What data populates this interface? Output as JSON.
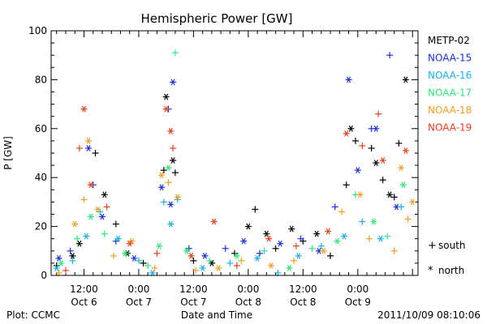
{
  "chart_data": {
    "type": "scatter",
    "title": "Hemispheric Power [GW]",
    "ylabel": "P [GW]",
    "xlabel": "Date and Time",
    "ylim": [
      0,
      100
    ],
    "xlim": [
      "2011-10-06 04:48",
      "2011-10-09 13:12"
    ],
    "yticks": [
      "0",
      "20",
      "40",
      "60",
      "80",
      "100"
    ],
    "xticks": [
      {
        "time": "2011-10-06 12:00",
        "line1": "12:00",
        "line2": "Oct 6"
      },
      {
        "time": "2011-10-07 00:00",
        "line1": "0:00",
        "line2": "Oct 7"
      },
      {
        "time": "2011-10-07 12:00",
        "line1": "12:00",
        "line2": "Oct 7"
      },
      {
        "time": "2011-10-08 00:00",
        "line1": "0:00",
        "line2": "Oct 8"
      },
      {
        "time": "2011-10-08 12:00",
        "line1": "12:00",
        "line2": "Oct 8"
      },
      {
        "time": "2011-10-09 00:00",
        "line1": "0:00",
        "line2": "Oct 9"
      }
    ],
    "legend": {
      "placement": "right",
      "entries": [
        {
          "name": "METP-02",
          "color": "#000000"
        },
        {
          "name": "NOAA-15",
          "color": "#1a2fd8"
        },
        {
          "name": "NOAA-16",
          "color": "#1ab0e8"
        },
        {
          "name": "NOAA-17",
          "color": "#2ee87a"
        },
        {
          "name": "NOAA-18",
          "color": "#f0a020"
        },
        {
          "name": "NOAA-19",
          "color": "#e8401c"
        }
      ],
      "markers": [
        {
          "symbol": "+",
          "label": "south"
        },
        {
          "symbol": "*",
          "label": "north"
        }
      ]
    },
    "series": [
      {
        "name": "METP-02",
        "color": "#000000",
        "points": [
          [
            "2011-10-06 06:00",
            4,
            "+"
          ],
          [
            "2011-10-06 09:30",
            8,
            "*"
          ],
          [
            "2011-10-06 11:00",
            13,
            "*"
          ],
          [
            "2011-10-06 14:30",
            50,
            "+"
          ],
          [
            "2011-10-06 16:30",
            33,
            "*"
          ],
          [
            "2011-10-06 19:00",
            21,
            "+"
          ],
          [
            "2011-10-06 21:30",
            9,
            "*"
          ],
          [
            "2011-10-07 01:00",
            5,
            "+"
          ],
          [
            "2011-10-07 05:30",
            43,
            "+"
          ],
          [
            "2011-10-07 06:00",
            73,
            "*"
          ],
          [
            "2011-10-07 07:30",
            47,
            "*"
          ],
          [
            "2011-10-07 08:00",
            42,
            "+"
          ],
          [
            "2011-10-07 12:00",
            6,
            "+"
          ],
          [
            "2011-10-07 16:00",
            5,
            "*"
          ],
          [
            "2011-10-07 21:00",
            9,
            "+"
          ],
          [
            "2011-10-08 00:00",
            20,
            "*"
          ],
          [
            "2011-10-08 01:30",
            27,
            "+"
          ],
          [
            "2011-10-08 04:00",
            17,
            "*"
          ],
          [
            "2011-10-08 06:00",
            11,
            "+"
          ],
          [
            "2011-10-08 09:30",
            19,
            "*"
          ],
          [
            "2011-10-08 12:00",
            14,
            "+"
          ],
          [
            "2011-10-08 15:00",
            17,
            "*"
          ],
          [
            "2011-10-08 18:00",
            8,
            "+"
          ],
          [
            "2011-10-08 21:30",
            37,
            "+"
          ],
          [
            "2011-10-08 22:30",
            60,
            "*"
          ],
          [
            "2011-10-08 23:30",
            55,
            "+"
          ],
          [
            "2011-10-09 03:00",
            52,
            "+"
          ],
          [
            "2011-10-09 04:00",
            46,
            "*"
          ],
          [
            "2011-10-09 05:30",
            39,
            "+"
          ],
          [
            "2011-10-09 07:00",
            33,
            "*"
          ],
          [
            "2011-10-09 09:00",
            54,
            "+"
          ],
          [
            "2011-10-09 10:30",
            80,
            "*"
          ],
          [
            "2011-10-09 08:00",
            32,
            "+"
          ]
        ]
      },
      {
        "name": "NOAA-15",
        "color": "#1a2fd8",
        "points": [
          [
            "2011-10-06 06:30",
            7,
            "*"
          ],
          [
            "2011-10-06 09:00",
            10,
            "+"
          ],
          [
            "2011-10-06 13:00",
            52,
            "*"
          ],
          [
            "2011-10-06 14:00",
            37,
            "+"
          ],
          [
            "2011-10-06 16:00",
            24,
            "*"
          ],
          [
            "2011-10-06 19:00",
            14,
            "+"
          ],
          [
            "2011-10-06 23:00",
            7,
            "*"
          ],
          [
            "2011-10-07 05:00",
            36,
            "*"
          ],
          [
            "2011-10-07 06:30",
            68,
            "+"
          ],
          [
            "2011-10-07 07:00",
            29,
            "*"
          ],
          [
            "2011-10-07 07:30",
            79,
            "*"
          ],
          [
            "2011-10-07 11:00",
            11,
            "+"
          ],
          [
            "2011-10-07 14:30",
            8,
            "*"
          ],
          [
            "2011-10-07 19:00",
            11,
            "+"
          ],
          [
            "2011-10-07 23:00",
            14,
            "*"
          ],
          [
            "2011-10-08 02:30",
            9,
            "+"
          ],
          [
            "2011-10-08 07:00",
            13,
            "*"
          ],
          [
            "2011-10-08 11:30",
            15,
            "+"
          ],
          [
            "2011-10-08 15:30",
            10,
            "*"
          ],
          [
            "2011-10-08 19:00",
            28,
            "+"
          ],
          [
            "2011-10-08 22:00",
            80,
            "*"
          ],
          [
            "2011-10-09 00:00",
            43,
            "*"
          ],
          [
            "2011-10-09 03:00",
            60,
            "+"
          ],
          [
            "2011-10-09 04:00",
            60,
            "*"
          ],
          [
            "2011-10-09 07:00",
            90,
            "+"
          ],
          [
            "2011-10-09 08:30",
            28,
            "*"
          ]
        ]
      },
      {
        "name": "NOAA-16",
        "color": "#1ab0e8",
        "points": [
          [
            "2011-10-06 06:00",
            3,
            "*"
          ],
          [
            "2011-10-06 09:30",
            6,
            "+"
          ],
          [
            "2011-10-06 12:30",
            16,
            "*"
          ],
          [
            "2011-10-06 15:30",
            26,
            "+"
          ],
          [
            "2011-10-06 19:30",
            15,
            "*"
          ],
          [
            "2011-10-07 00:00",
            6,
            "+"
          ],
          [
            "2011-10-07 03:00",
            1,
            "*"
          ],
          [
            "2011-10-07 05:30",
            30,
            "+"
          ],
          [
            "2011-10-07 07:00",
            21,
            "*"
          ],
          [
            "2011-10-07 08:30",
            31,
            "+"
          ],
          [
            "2011-10-07 14:00",
            3,
            "*"
          ],
          [
            "2011-10-07 20:00",
            5,
            "+"
          ],
          [
            "2011-10-08 02:00",
            7,
            "*"
          ],
          [
            "2011-10-08 06:30",
            1,
            "+"
          ],
          [
            "2011-10-08 11:00",
            8,
            "*"
          ],
          [
            "2011-10-08 16:00",
            12,
            "+"
          ],
          [
            "2011-10-08 21:00",
            16,
            "*"
          ],
          [
            "2011-10-09 01:00",
            22,
            "+"
          ],
          [
            "2011-10-09 05:00",
            15,
            "*"
          ],
          [
            "2011-10-09 09:30",
            28,
            "+"
          ]
        ]
      },
      {
        "name": "NOAA-17",
        "color": "#2ee87a",
        "points": [
          [
            "2011-10-06 07:00",
            5,
            "*"
          ],
          [
            "2011-10-06 10:30",
            15,
            "+"
          ],
          [
            "2011-10-06 13:30",
            24,
            "*"
          ],
          [
            "2011-10-06 16:30",
            17,
            "+"
          ],
          [
            "2011-10-06 21:00",
            9,
            "*"
          ],
          [
            "2011-10-07 02:00",
            4,
            "+"
          ],
          [
            "2011-10-07 04:30",
            12,
            "*"
          ],
          [
            "2011-10-07 06:30",
            44,
            "*"
          ],
          [
            "2011-10-07 08:00",
            91,
            "+"
          ],
          [
            "2011-10-07 10:30",
            10,
            "*"
          ],
          [
            "2011-10-07 15:30",
            6,
            "+"
          ],
          [
            "2011-10-07 21:30",
            8,
            "*"
          ],
          [
            "2011-10-08 03:30",
            10,
            "+"
          ],
          [
            "2011-10-08 09:00",
            3,
            "*"
          ],
          [
            "2011-10-08 14:00",
            11,
            "+"
          ],
          [
            "2011-10-08 19:30",
            14,
            "*"
          ],
          [
            "2011-10-08 23:30",
            33,
            "+"
          ],
          [
            "2011-10-09 03:30",
            22,
            "*"
          ],
          [
            "2011-10-09 06:30",
            16,
            "+"
          ],
          [
            "2011-10-09 10:00",
            37,
            "*"
          ]
        ]
      },
      {
        "name": "NOAA-18",
        "color": "#f0a020",
        "points": [
          [
            "2011-10-06 06:30",
            1,
            "+"
          ],
          [
            "2011-10-06 10:00",
            21,
            "*"
          ],
          [
            "2011-10-06 12:00",
            31,
            "+"
          ],
          [
            "2011-10-06 13:00",
            55,
            "*"
          ],
          [
            "2011-10-06 15:00",
            27,
            "*"
          ],
          [
            "2011-10-06 18:30",
            8,
            "+"
          ],
          [
            "2011-10-06 22:30",
            14,
            "*"
          ],
          [
            "2011-10-07 03:30",
            3,
            "+"
          ],
          [
            "2011-10-07 05:00",
            41,
            "*"
          ],
          [
            "2011-10-07 06:30",
            38,
            "+"
          ],
          [
            "2011-10-07 08:30",
            32,
            "*"
          ],
          [
            "2011-10-07 12:30",
            2,
            "+"
          ],
          [
            "2011-10-07 17:30",
            3,
            "*"
          ],
          [
            "2011-10-07 22:30",
            6,
            "+"
          ],
          [
            "2011-10-08 05:00",
            4,
            "*"
          ],
          [
            "2011-10-08 10:00",
            6,
            "+"
          ],
          [
            "2011-10-08 16:30",
            10,
            "*"
          ],
          [
            "2011-10-08 20:30",
            26,
            "+"
          ],
          [
            "2011-10-09 00:30",
            33,
            "*"
          ],
          [
            "2011-10-09 02:30",
            15,
            "+"
          ],
          [
            "2011-10-09 08:00",
            10,
            "+"
          ],
          [
            "2011-10-09 09:30",
            44,
            "*"
          ],
          [
            "2011-10-09 11:00",
            23,
            "+"
          ],
          [
            "2011-10-09 12:00",
            30,
            "*"
          ]
        ]
      },
      {
        "name": "NOAA-19",
        "color": "#e8401c",
        "points": [
          [
            "2011-10-06 08:00",
            2,
            "+"
          ],
          [
            "2011-10-06 11:00",
            52,
            "+"
          ],
          [
            "2011-10-06 12:00",
            68,
            "*"
          ],
          [
            "2011-10-06 13:30",
            37,
            "*"
          ],
          [
            "2011-10-06 17:00",
            28,
            "+"
          ],
          [
            "2011-10-06 22:00",
            13,
            "*"
          ],
          [
            "2011-10-07 04:00",
            9,
            "+"
          ],
          [
            "2011-10-07 06:00",
            68,
            "*"
          ],
          [
            "2011-10-07 07:00",
            59,
            "*"
          ],
          [
            "2011-10-07 07:30",
            52,
            "+"
          ],
          [
            "2011-10-07 11:30",
            8,
            "*"
          ],
          [
            "2011-10-07 16:30",
            22,
            "*"
          ],
          [
            "2011-10-07 21:30",
            4,
            "+"
          ],
          [
            "2011-10-08 04:30",
            15,
            "*"
          ],
          [
            "2011-10-08 10:30",
            12,
            "+"
          ],
          [
            "2011-10-08 17:30",
            18,
            "*"
          ],
          [
            "2011-10-08 21:30",
            58,
            "*"
          ],
          [
            "2011-10-09 01:00",
            53,
            "+"
          ],
          [
            "2011-10-09 04:30",
            66,
            "+"
          ],
          [
            "2011-10-09 05:30",
            47,
            "*"
          ],
          [
            "2011-10-09 10:30",
            51,
            "*"
          ]
        ]
      }
    ]
  },
  "footer": {
    "left": "Plot: CCMC",
    "right": "2011/10/09 08:10:06"
  }
}
